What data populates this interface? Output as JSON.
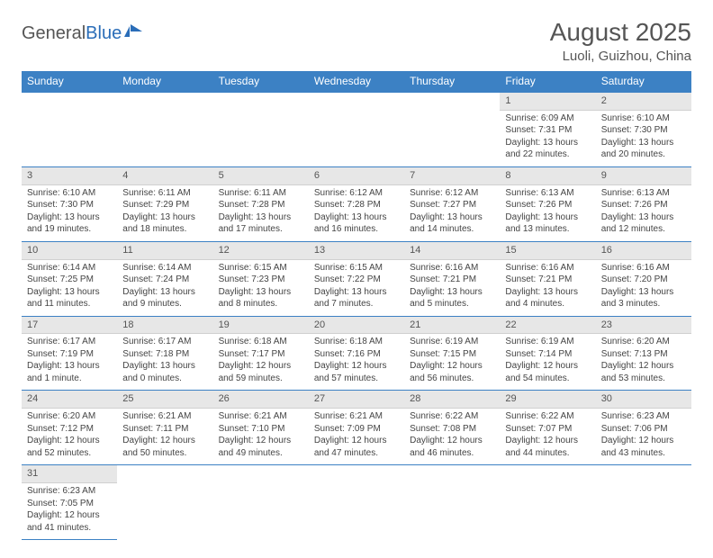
{
  "logo": {
    "text_gray": "General",
    "text_blue": "Blue"
  },
  "title": "August 2025",
  "subtitle": "Luoli, Guizhou, China",
  "day_headers": [
    "Sunday",
    "Monday",
    "Tuesday",
    "Wednesday",
    "Thursday",
    "Friday",
    "Saturday"
  ],
  "colors": {
    "header_bg": "#3c81c4",
    "header_text": "#ffffff",
    "daynum_bg": "#e7e7e7",
    "row_divider": "#3c81c4",
    "text": "#444444"
  },
  "weeks": [
    [
      null,
      null,
      null,
      null,
      null,
      {
        "n": "1",
        "sunrise": "Sunrise: 6:09 AM",
        "sunset": "Sunset: 7:31 PM",
        "daylight": "Daylight: 13 hours and 22 minutes."
      },
      {
        "n": "2",
        "sunrise": "Sunrise: 6:10 AM",
        "sunset": "Sunset: 7:30 PM",
        "daylight": "Daylight: 13 hours and 20 minutes."
      }
    ],
    [
      {
        "n": "3",
        "sunrise": "Sunrise: 6:10 AM",
        "sunset": "Sunset: 7:30 PM",
        "daylight": "Daylight: 13 hours and 19 minutes."
      },
      {
        "n": "4",
        "sunrise": "Sunrise: 6:11 AM",
        "sunset": "Sunset: 7:29 PM",
        "daylight": "Daylight: 13 hours and 18 minutes."
      },
      {
        "n": "5",
        "sunrise": "Sunrise: 6:11 AM",
        "sunset": "Sunset: 7:28 PM",
        "daylight": "Daylight: 13 hours and 17 minutes."
      },
      {
        "n": "6",
        "sunrise": "Sunrise: 6:12 AM",
        "sunset": "Sunset: 7:28 PM",
        "daylight": "Daylight: 13 hours and 16 minutes."
      },
      {
        "n": "7",
        "sunrise": "Sunrise: 6:12 AM",
        "sunset": "Sunset: 7:27 PM",
        "daylight": "Daylight: 13 hours and 14 minutes."
      },
      {
        "n": "8",
        "sunrise": "Sunrise: 6:13 AM",
        "sunset": "Sunset: 7:26 PM",
        "daylight": "Daylight: 13 hours and 13 minutes."
      },
      {
        "n": "9",
        "sunrise": "Sunrise: 6:13 AM",
        "sunset": "Sunset: 7:26 PM",
        "daylight": "Daylight: 13 hours and 12 minutes."
      }
    ],
    [
      {
        "n": "10",
        "sunrise": "Sunrise: 6:14 AM",
        "sunset": "Sunset: 7:25 PM",
        "daylight": "Daylight: 13 hours and 11 minutes."
      },
      {
        "n": "11",
        "sunrise": "Sunrise: 6:14 AM",
        "sunset": "Sunset: 7:24 PM",
        "daylight": "Daylight: 13 hours and 9 minutes."
      },
      {
        "n": "12",
        "sunrise": "Sunrise: 6:15 AM",
        "sunset": "Sunset: 7:23 PM",
        "daylight": "Daylight: 13 hours and 8 minutes."
      },
      {
        "n": "13",
        "sunrise": "Sunrise: 6:15 AM",
        "sunset": "Sunset: 7:22 PM",
        "daylight": "Daylight: 13 hours and 7 minutes."
      },
      {
        "n": "14",
        "sunrise": "Sunrise: 6:16 AM",
        "sunset": "Sunset: 7:21 PM",
        "daylight": "Daylight: 13 hours and 5 minutes."
      },
      {
        "n": "15",
        "sunrise": "Sunrise: 6:16 AM",
        "sunset": "Sunset: 7:21 PM",
        "daylight": "Daylight: 13 hours and 4 minutes."
      },
      {
        "n": "16",
        "sunrise": "Sunrise: 6:16 AM",
        "sunset": "Sunset: 7:20 PM",
        "daylight": "Daylight: 13 hours and 3 minutes."
      }
    ],
    [
      {
        "n": "17",
        "sunrise": "Sunrise: 6:17 AM",
        "sunset": "Sunset: 7:19 PM",
        "daylight": "Daylight: 13 hours and 1 minute."
      },
      {
        "n": "18",
        "sunrise": "Sunrise: 6:17 AM",
        "sunset": "Sunset: 7:18 PM",
        "daylight": "Daylight: 13 hours and 0 minutes."
      },
      {
        "n": "19",
        "sunrise": "Sunrise: 6:18 AM",
        "sunset": "Sunset: 7:17 PM",
        "daylight": "Daylight: 12 hours and 59 minutes."
      },
      {
        "n": "20",
        "sunrise": "Sunrise: 6:18 AM",
        "sunset": "Sunset: 7:16 PM",
        "daylight": "Daylight: 12 hours and 57 minutes."
      },
      {
        "n": "21",
        "sunrise": "Sunrise: 6:19 AM",
        "sunset": "Sunset: 7:15 PM",
        "daylight": "Daylight: 12 hours and 56 minutes."
      },
      {
        "n": "22",
        "sunrise": "Sunrise: 6:19 AM",
        "sunset": "Sunset: 7:14 PM",
        "daylight": "Daylight: 12 hours and 54 minutes."
      },
      {
        "n": "23",
        "sunrise": "Sunrise: 6:20 AM",
        "sunset": "Sunset: 7:13 PM",
        "daylight": "Daylight: 12 hours and 53 minutes."
      }
    ],
    [
      {
        "n": "24",
        "sunrise": "Sunrise: 6:20 AM",
        "sunset": "Sunset: 7:12 PM",
        "daylight": "Daylight: 12 hours and 52 minutes."
      },
      {
        "n": "25",
        "sunrise": "Sunrise: 6:21 AM",
        "sunset": "Sunset: 7:11 PM",
        "daylight": "Daylight: 12 hours and 50 minutes."
      },
      {
        "n": "26",
        "sunrise": "Sunrise: 6:21 AM",
        "sunset": "Sunset: 7:10 PM",
        "daylight": "Daylight: 12 hours and 49 minutes."
      },
      {
        "n": "27",
        "sunrise": "Sunrise: 6:21 AM",
        "sunset": "Sunset: 7:09 PM",
        "daylight": "Daylight: 12 hours and 47 minutes."
      },
      {
        "n": "28",
        "sunrise": "Sunrise: 6:22 AM",
        "sunset": "Sunset: 7:08 PM",
        "daylight": "Daylight: 12 hours and 46 minutes."
      },
      {
        "n": "29",
        "sunrise": "Sunrise: 6:22 AM",
        "sunset": "Sunset: 7:07 PM",
        "daylight": "Daylight: 12 hours and 44 minutes."
      },
      {
        "n": "30",
        "sunrise": "Sunrise: 6:23 AM",
        "sunset": "Sunset: 7:06 PM",
        "daylight": "Daylight: 12 hours and 43 minutes."
      }
    ],
    [
      {
        "n": "31",
        "sunrise": "Sunrise: 6:23 AM",
        "sunset": "Sunset: 7:05 PM",
        "daylight": "Daylight: 12 hours and 41 minutes."
      },
      null,
      null,
      null,
      null,
      null,
      null
    ]
  ]
}
